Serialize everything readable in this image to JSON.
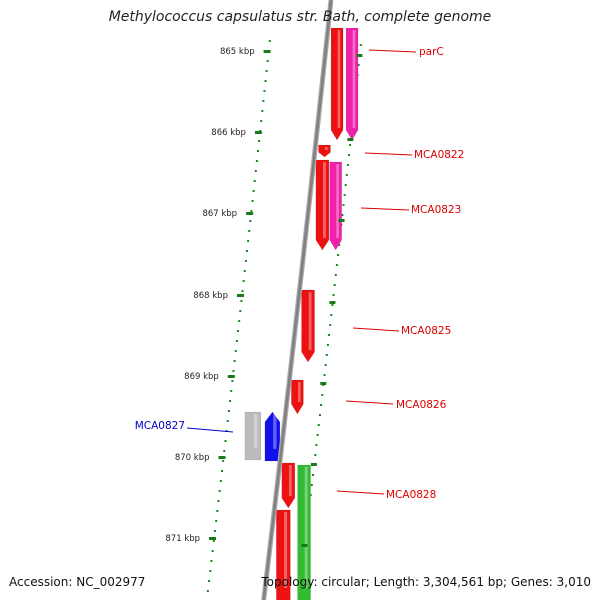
{
  "title": "Methylococcus capsulatus str. Bath, complete genome",
  "footer": {
    "accession": "Accession: NC_002977",
    "summary": "Topology: circular; Length: 3,304,561 bp; Genes: 3,010"
  },
  "colors": {
    "backbone": "#808080",
    "scale_dots": "#1a8a1a",
    "red_strand": "#ee1111",
    "pink_strand": "#ee22aa",
    "green_strand": "#33bb33",
    "blue_gene": "#1111ee",
    "grey_gene": "#bbbbbb",
    "label_red": "#dd0000",
    "label_blue": "#0000cc"
  },
  "ticks": [
    "865 kbp",
    "866 kbp",
    "867 kbp",
    "868 kbp",
    "869 kbp",
    "870 kbp",
    "871 kbp"
  ],
  "genes": [
    {
      "label": "parC",
      "color": "label_red"
    },
    {
      "label": "MCA0822",
      "color": "label_red"
    },
    {
      "label": "MCA0823",
      "color": "label_red"
    },
    {
      "label": "MCA0825",
      "color": "label_red"
    },
    {
      "label": "MCA0826",
      "color": "label_red"
    },
    {
      "label": "MCA0827",
      "color": "label_blue"
    },
    {
      "label": "MCA0828",
      "color": "label_red"
    }
  ]
}
